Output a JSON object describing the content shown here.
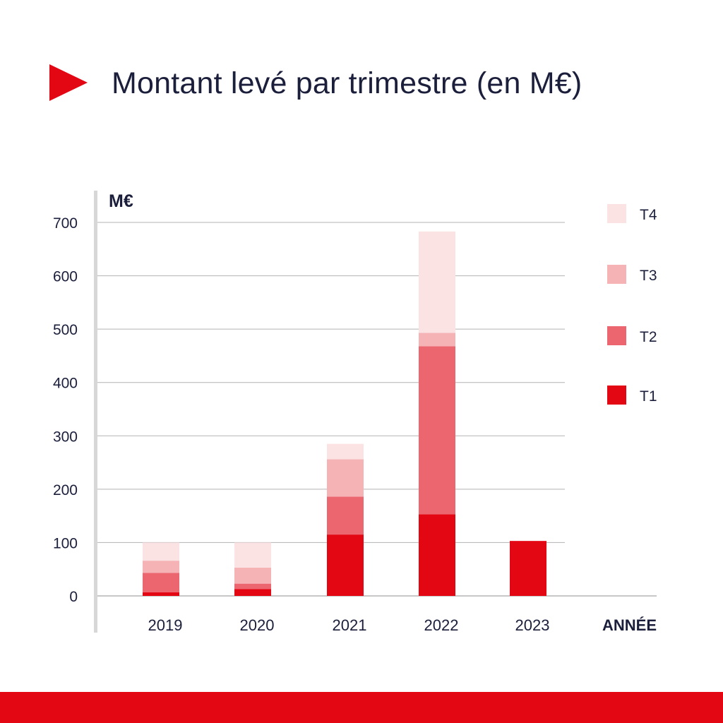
{
  "title": "Montant levé par trimestre (en M€)",
  "colors": {
    "accent": "#e30613",
    "T1": "#e30613",
    "T2": "#ec6670",
    "T3": "#f5b3b6",
    "T4": "#fbe3e4",
    "text": "#1b1f3b",
    "grid": "#b3b3b3",
    "axis": "#d7d7d7"
  },
  "chart_data": {
    "type": "bar",
    "stacked": true,
    "categories": [
      "2019",
      "2020",
      "2021",
      "2022",
      "2023"
    ],
    "series": [
      {
        "name": "T1",
        "values": [
          7,
          13,
          115,
          153,
          103
        ]
      },
      {
        "name": "T2",
        "values": [
          36,
          10,
          71,
          315,
          0
        ]
      },
      {
        "name": "T3",
        "values": [
          23,
          30,
          70,
          25,
          0
        ]
      },
      {
        "name": "T4",
        "values": [
          34,
          47,
          29,
          190,
          0
        ]
      }
    ],
    "ylabel": "M€",
    "xlabel": "ANNÉE",
    "ylim": [
      0,
      700
    ],
    "yticks": [
      0,
      100,
      200,
      300,
      400,
      500,
      600,
      700
    ],
    "legend_position": "right",
    "legend_order": [
      "T4",
      "T3",
      "T2",
      "T1"
    ],
    "grid": true
  }
}
